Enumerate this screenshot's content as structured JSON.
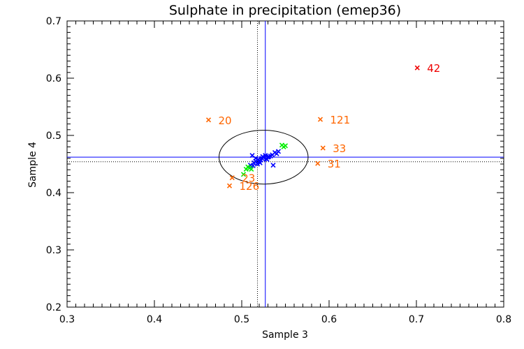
{
  "chart_data": {
    "type": "scatter",
    "title": "Sulphate in precipitation (emep36)",
    "xlabel": "Sample 3",
    "ylabel": "Sample 4",
    "xlim": [
      0.3,
      0.8
    ],
    "ylim": [
      0.2,
      0.7
    ],
    "xticks": [
      "0.3",
      "0.4",
      "0.5",
      "0.6",
      "0.7",
      "0.8"
    ],
    "yticks": [
      "0.2",
      "0.3",
      "0.4",
      "0.5",
      "0.6",
      "0.7"
    ],
    "xtick_values": [
      0.3,
      0.4,
      0.5,
      0.6,
      0.7,
      0.8
    ],
    "ytick_values": [
      0.2,
      0.3,
      0.4,
      0.5,
      0.6,
      0.7
    ],
    "reference_lines": {
      "blue_vertical_x": 0.527,
      "blue_horizontal_y": 0.462,
      "dotted_vertical_x": 0.518,
      "dotted_horizontal_y": 0.454
    },
    "ellipse": {
      "cx": 0.525,
      "cy": 0.462,
      "rx": 0.051,
      "ry": 0.047
    },
    "colors": {
      "main": "#0000ff",
      "secondary": "#00ee00",
      "outlier_moderate": "#ff6600",
      "outlier_extreme": "#ee0000",
      "ellipse": "#000000",
      "dotted": "#000000"
    },
    "series": [
      {
        "name": "main",
        "color": "#0000ff",
        "points": [
          [
            0.51,
            0.448
          ],
          [
            0.512,
            0.465
          ],
          [
            0.514,
            0.452
          ],
          [
            0.516,
            0.455
          ],
          [
            0.518,
            0.45
          ],
          [
            0.519,
            0.458
          ],
          [
            0.52,
            0.455
          ],
          [
            0.522,
            0.457
          ],
          [
            0.523,
            0.46
          ],
          [
            0.524,
            0.463
          ],
          [
            0.525,
            0.461
          ],
          [
            0.527,
            0.465
          ],
          [
            0.528,
            0.459
          ],
          [
            0.53,
            0.462
          ],
          [
            0.531,
            0.463
          ],
          [
            0.533,
            0.464
          ],
          [
            0.535,
            0.466
          ],
          [
            0.536,
            0.448
          ],
          [
            0.538,
            0.47
          ],
          [
            0.54,
            0.468
          ],
          [
            0.542,
            0.472
          ],
          [
            0.513,
            0.447
          ],
          [
            0.521,
            0.452
          ],
          [
            0.516,
            0.46
          ],
          [
            0.529,
            0.458
          ]
        ]
      },
      {
        "name": "secondary",
        "color": "#00ee00",
        "points": [
          [
            0.502,
            0.432
          ],
          [
            0.505,
            0.441
          ],
          [
            0.507,
            0.445
          ],
          [
            0.509,
            0.443
          ],
          [
            0.511,
            0.441
          ],
          [
            0.546,
            0.483
          ],
          [
            0.548,
            0.48
          ],
          [
            0.55,
            0.482
          ]
        ]
      },
      {
        "name": "outliers",
        "color": "#ff6600",
        "points": [
          {
            "x": 0.462,
            "y": 0.527,
            "label": "20"
          },
          {
            "x": 0.59,
            "y": 0.528,
            "label": "121"
          },
          {
            "x": 0.593,
            "y": 0.478,
            "label": "33"
          },
          {
            "x": 0.587,
            "y": 0.451,
            "label": "31"
          },
          {
            "x": 0.489,
            "y": 0.426,
            "label": "23"
          },
          {
            "x": 0.486,
            "y": 0.412,
            "label": "126"
          }
        ]
      },
      {
        "name": "extreme",
        "color": "#ee0000",
        "points": [
          {
            "x": 0.701,
            "y": 0.618,
            "label": "42"
          }
        ]
      }
    ]
  }
}
